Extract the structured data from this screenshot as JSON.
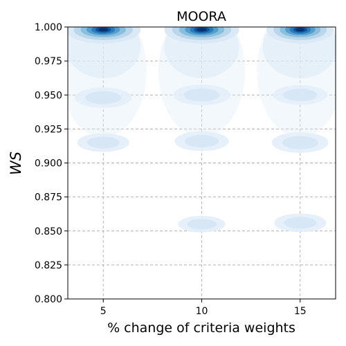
{
  "chart_data": {
    "type": "density",
    "title": "MOORA",
    "xlabel": "% change of criteria weights",
    "ylabel": "WS",
    "x_categories": [
      5,
      10,
      15
    ],
    "x_tick_labels": [
      "5",
      "10",
      "15"
    ],
    "y_ticks": [
      0.8,
      0.825,
      0.85,
      0.875,
      0.9,
      0.925,
      0.95,
      0.975,
      1.0
    ],
    "y_tick_labels": [
      "0.800",
      "0.825",
      "0.850",
      "0.875",
      "0.900",
      "0.925",
      "0.950",
      "0.975",
      "1.000"
    ],
    "xlim": [
      3.2,
      16.8
    ],
    "ylim": [
      0.8,
      1.0
    ],
    "grid": true,
    "colormap": "Blues",
    "colors": {
      "low": "#e8f1fa",
      "mid": "#6aaed6",
      "high": "#08306b",
      "grid": "#b0b0b0"
    },
    "density_peaks": [
      {
        "x": 5,
        "y": 0.998,
        "level": 1.0
      },
      {
        "x": 5,
        "y": 0.948,
        "level": 0.18
      },
      {
        "x": 5,
        "y": 0.915,
        "level": 0.14
      },
      {
        "x": 10,
        "y": 0.998,
        "level": 1.0
      },
      {
        "x": 10,
        "y": 0.95,
        "level": 0.18
      },
      {
        "x": 10,
        "y": 0.916,
        "level": 0.16
      },
      {
        "x": 10,
        "y": 0.855,
        "level": 0.1
      },
      {
        "x": 15,
        "y": 0.998,
        "level": 0.9
      },
      {
        "x": 15,
        "y": 0.95,
        "level": 0.16
      },
      {
        "x": 15,
        "y": 0.915,
        "level": 0.18
      },
      {
        "x": 15,
        "y": 0.856,
        "level": 0.14
      }
    ]
  }
}
